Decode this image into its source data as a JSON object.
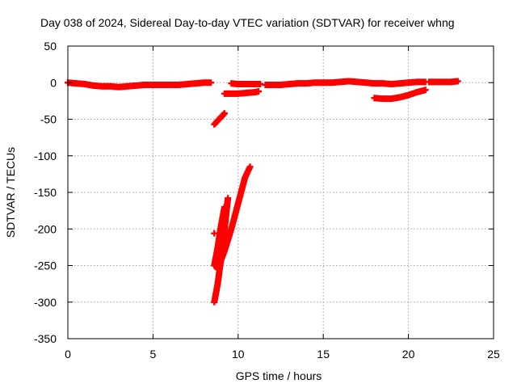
{
  "chart_data": {
    "type": "scatter",
    "title": "Day 038 of 2024, Sidereal Day-to-day VTEC variation (SDTVAR) for receiver whng",
    "xlabel": "GPS time / hours",
    "ylabel": "SDTVAR / TECUs",
    "xlim": [
      0,
      25
    ],
    "ylim": [
      -350,
      50
    ],
    "xticks": [
      "0",
      "5",
      "10",
      "15",
      "20",
      "25"
    ],
    "yticks": [
      "50",
      "0",
      "-50",
      "-100",
      "-150",
      "-200",
      "-250",
      "-300",
      "-350"
    ],
    "grid": true,
    "legend": "none",
    "series": [
      {
        "marker": "plus",
        "color": "#ff0000",
        "segments": [
          [
            [
              0.0,
              0
            ],
            [
              0.5,
              -1
            ],
            [
              1.0,
              -2
            ],
            [
              1.5,
              -4
            ],
            [
              2.0,
              -5
            ],
            [
              2.5,
              -5
            ],
            [
              3.0,
              -6
            ],
            [
              3.5,
              -5
            ],
            [
              4.0,
              -4
            ],
            [
              4.5,
              -3
            ],
            [
              5.0,
              -3
            ],
            [
              5.5,
              -3
            ],
            [
              6.0,
              -3
            ],
            [
              6.5,
              -3
            ],
            [
              7.0,
              -2
            ],
            [
              7.5,
              -1
            ],
            [
              8.0,
              0
            ],
            [
              8.4,
              0
            ]
          ],
          [
            [
              9.6,
              -1
            ],
            [
              10.0,
              -2
            ],
            [
              10.5,
              -2
            ],
            [
              11.0,
              -2
            ],
            [
              11.3,
              -2
            ]
          ],
          [
            [
              9.2,
              -15
            ],
            [
              9.6,
              -15
            ],
            [
              10.0,
              -15
            ],
            [
              10.5,
              -14
            ],
            [
              11.0,
              -13
            ],
            [
              11.2,
              -12
            ]
          ],
          [
            [
              11.6,
              -3
            ],
            [
              12.0,
              -3
            ],
            [
              12.5,
              -3
            ],
            [
              13.0,
              -2
            ],
            [
              13.5,
              -1
            ],
            [
              14.0,
              -1
            ],
            [
              14.5,
              0
            ],
            [
              15.0,
              0
            ],
            [
              15.5,
              0
            ],
            [
              16.0,
              1
            ],
            [
              16.5,
              2
            ],
            [
              17.0,
              1
            ],
            [
              17.5,
              0
            ],
            [
              18.0,
              -1
            ],
            [
              18.5,
              -1
            ],
            [
              19.0,
              -2
            ],
            [
              19.5,
              -1
            ],
            [
              20.0,
              0
            ],
            [
              20.5,
              1
            ],
            [
              21.0,
              1
            ]
          ],
          [
            [
              18.0,
              -21
            ],
            [
              18.5,
              -22
            ],
            [
              19.0,
              -22
            ],
            [
              19.5,
              -20
            ],
            [
              20.0,
              -17
            ],
            [
              20.5,
              -13
            ],
            [
              21.0,
              -10
            ]
          ],
          [
            [
              21.2,
              1
            ],
            [
              21.5,
              1
            ],
            [
              22.0,
              1
            ],
            [
              22.5,
              1
            ],
            [
              22.9,
              2
            ]
          ],
          [
            [
              8.6,
              -57
            ],
            [
              8.8,
              -52
            ],
            [
              9.0,
              -47
            ],
            [
              9.2,
              -42
            ]
          ],
          [
            [
              8.6,
              -300
            ],
            [
              8.8,
              -275
            ],
            [
              9.0,
              -240
            ],
            [
              9.2,
              -200
            ],
            [
              9.4,
              -158
            ]
          ],
          [
            [
              8.6,
              -250
            ],
            [
              8.8,
              -225
            ],
            [
              9.0,
              -195
            ],
            [
              9.2,
              -170
            ]
          ],
          [
            [
              8.6,
              -206
            ]
          ],
          [
            [
              8.8,
              -255
            ],
            [
              9.2,
              -230
            ],
            [
              9.6,
              -200
            ],
            [
              10.0,
              -165
            ],
            [
              10.4,
              -130
            ],
            [
              10.7,
              -115
            ]
          ]
        ]
      }
    ]
  }
}
